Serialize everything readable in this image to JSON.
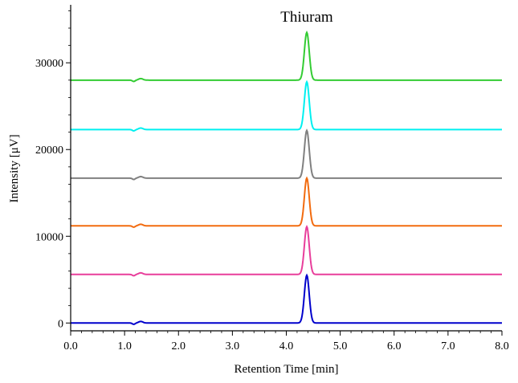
{
  "chart_data": {
    "type": "line",
    "title": "",
    "xlabel": "Retention Time [min]",
    "ylabel": "Intensity [μV]",
    "xlim": [
      0,
      8
    ],
    "ylim": [
      -900,
      36500
    ],
    "x_ticks": [
      0,
      1,
      2,
      3,
      4,
      5,
      6,
      7,
      8
    ],
    "x_tick_labels": [
      "0.0",
      "1.0",
      "2.0",
      "3.0",
      "4.0",
      "5.0",
      "6.0",
      "7.0",
      "8.0"
    ],
    "y_ticks": [
      0,
      10000,
      20000,
      30000
    ],
    "y_tick_labels": [
      "0",
      "10000",
      "20000",
      "30000"
    ],
    "grid": false,
    "legend": "none",
    "annotation": {
      "text": "Thiuram",
      "x": 4.38,
      "y": 34000
    },
    "peak": {
      "center": 4.38,
      "width_sigma": 0.045
    },
    "series": [
      {
        "color": "#0000cc",
        "baseline": 0,
        "peak_height": 5500,
        "blip_amp": 150
      },
      {
        "color": "#e83e9b",
        "baseline": 5600,
        "peak_height": 5500,
        "blip_amp": 150
      },
      {
        "color": "#f26b0f",
        "baseline": 11200,
        "peak_height": 5500,
        "blip_amp": 150
      },
      {
        "color": "#808080",
        "baseline": 16700,
        "peak_height": 5500,
        "blip_amp": 150
      },
      {
        "color": "#00f0f0",
        "baseline": 22300,
        "peak_height": 5500,
        "blip_amp": 150
      },
      {
        "color": "#33cc33",
        "baseline": 28000,
        "peak_height": 5500,
        "blip_amp": 150
      }
    ]
  }
}
